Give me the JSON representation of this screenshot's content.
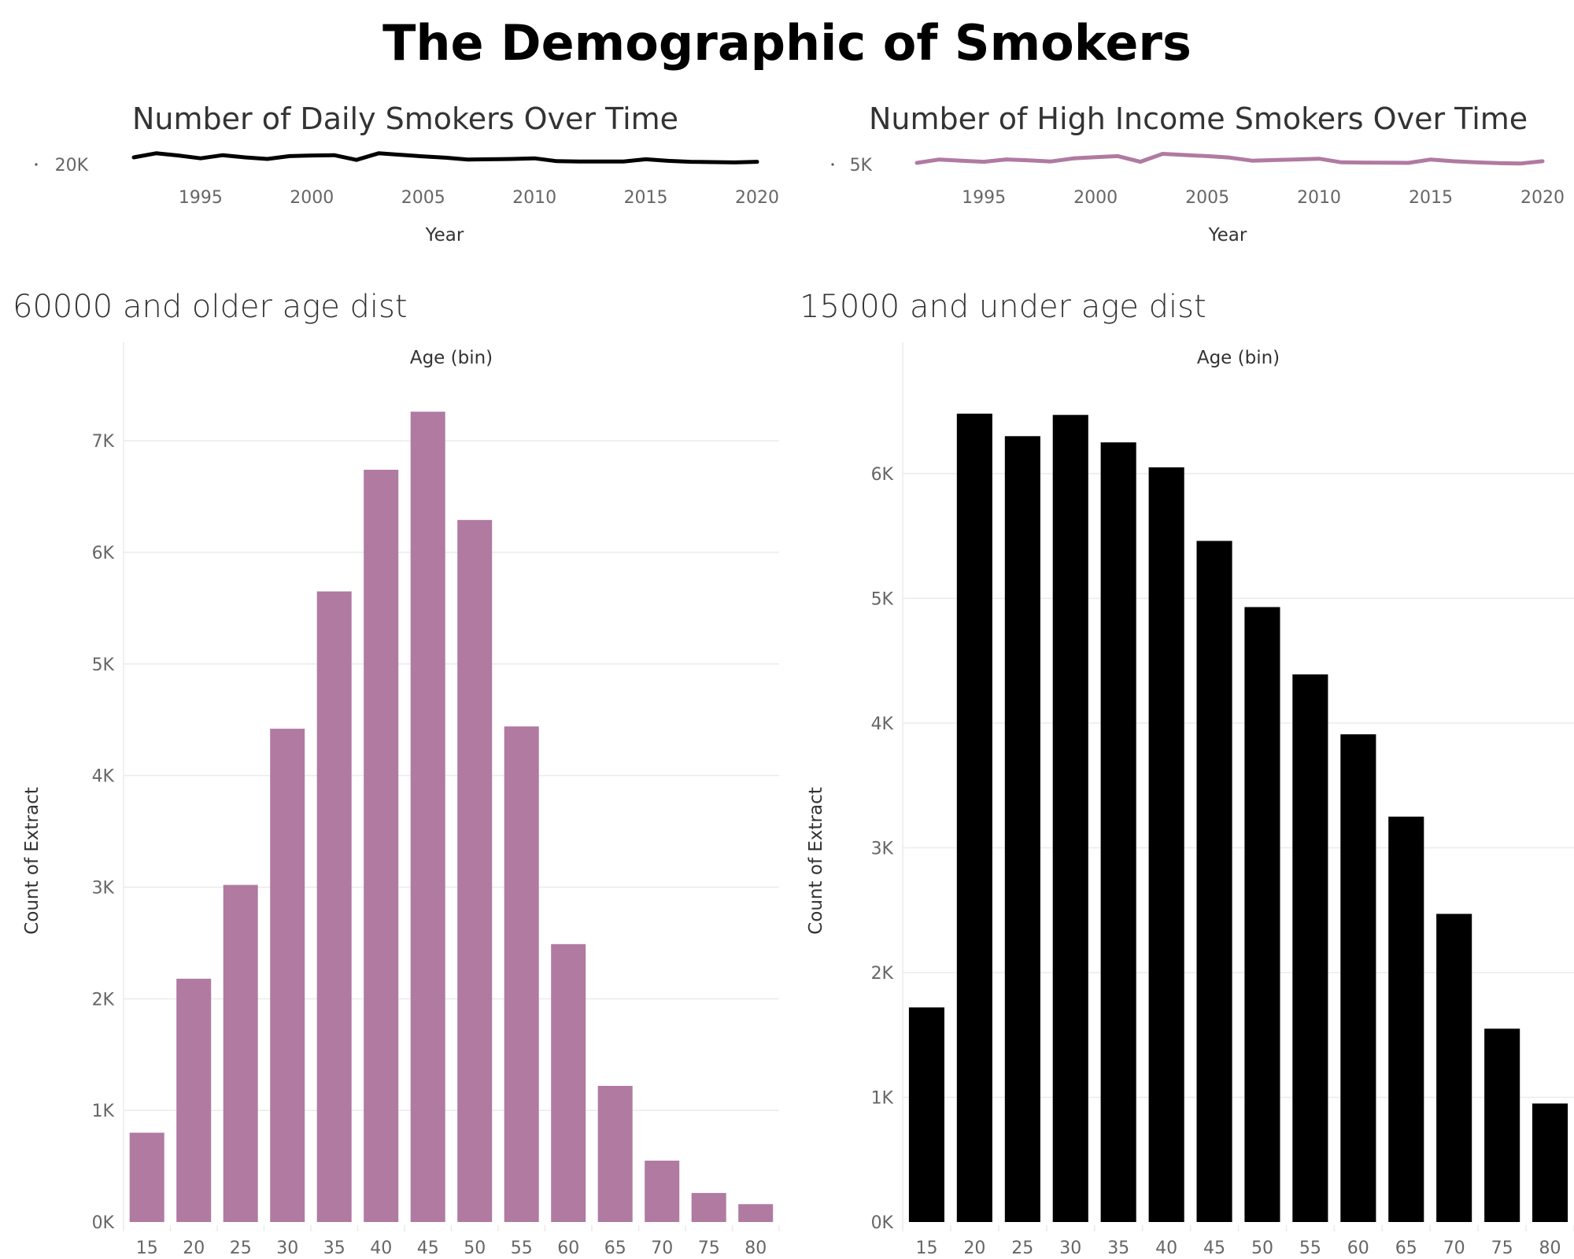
{
  "page": {
    "title": "The Demographic of Smokers"
  },
  "chart_data": [
    {
      "id": "daily",
      "type": "line",
      "title": "Number of Daily Smokers Over Time",
      "xlabel": "Year",
      "ylabel": "",
      "x_ticks": [
        1995,
        2000,
        2005,
        2010,
        2015,
        2020
      ],
      "y_tick_label": "20K",
      "xlim": [
        1992,
        2020
      ],
      "ylim": [
        15000,
        25000
      ],
      "color": "#000000",
      "x": [
        1992,
        1993,
        1994,
        1995,
        1996,
        1997,
        1998,
        1999,
        2000,
        2001,
        2002,
        2003,
        2004,
        2005,
        2006,
        2007,
        2008,
        2009,
        2010,
        2011,
        2012,
        2013,
        2014,
        2015,
        2016,
        2017,
        2018,
        2019,
        2020
      ],
      "y": [
        20000,
        21300,
        20600,
        19700,
        20700,
        20000,
        19500,
        20400,
        20600,
        20700,
        19200,
        21300,
        20800,
        20300,
        19900,
        19300,
        19400,
        19500,
        19700,
        18800,
        18700,
        18700,
        18700,
        19400,
        18900,
        18600,
        18500,
        18400,
        18600
      ]
    },
    {
      "id": "high_income",
      "type": "line",
      "title": "Number of High Income Smokers Over Time",
      "xlabel": "Year",
      "ylabel": "",
      "x_ticks": [
        1995,
        2000,
        2005,
        2010,
        2015,
        2020
      ],
      "y_tick_label": "5K",
      "xlim": [
        1992,
        2020
      ],
      "ylim": [
        3750,
        6250
      ],
      "color": "#b07aa1",
      "x": [
        1992,
        1993,
        1994,
        1995,
        1996,
        1997,
        1998,
        1999,
        2000,
        2001,
        2002,
        2003,
        2004,
        2005,
        2006,
        2007,
        2008,
        2009,
        2010,
        2011,
        2012,
        2013,
        2014,
        2015,
        2016,
        2017,
        2018,
        2019,
        2020
      ],
      "y": [
        4650,
        4950,
        4850,
        4750,
        4960,
        4880,
        4780,
        5050,
        5150,
        5250,
        4750,
        5450,
        5350,
        5250,
        5120,
        4850,
        4900,
        4960,
        5020,
        4700,
        4680,
        4670,
        4650,
        4950,
        4800,
        4700,
        4630,
        4600,
        4800
      ]
    },
    {
      "id": "older",
      "type": "bar",
      "title": "60000 and older age dist",
      "xlabel": "Age (bin)",
      "ylabel": "Count of Extract",
      "categories": [
        "15",
        "20",
        "25",
        "30",
        "35",
        "40",
        "45",
        "50",
        "55",
        "60",
        "65",
        "70",
        "75",
        "80"
      ],
      "values": [
        800,
        2180,
        3020,
        4420,
        5650,
        6740,
        7260,
        6290,
        4440,
        2490,
        1220,
        550,
        260,
        160
      ],
      "y_ticks": [
        0,
        1000,
        2000,
        3000,
        4000,
        5000,
        6000,
        7000
      ],
      "y_tick_labels": [
        "0K",
        "1K",
        "2K",
        "3K",
        "4K",
        "5K",
        "6K",
        "7K"
      ],
      "ylim": [
        0,
        7600
      ],
      "color": "#b07aa1"
    },
    {
      "id": "under",
      "type": "bar",
      "title": "15000 and under age dist",
      "xlabel": "Age (bin)",
      "ylabel": "Count of Extract",
      "categories": [
        "15",
        "20",
        "25",
        "30",
        "35",
        "40",
        "45",
        "50",
        "55",
        "60",
        "65",
        "70",
        "75",
        "80"
      ],
      "values": [
        1720,
        6480,
        6300,
        6470,
        6250,
        6050,
        5460,
        4930,
        4390,
        3910,
        3250,
        2470,
        1550,
        950
      ],
      "y_ticks": [
        0,
        1000,
        2000,
        3000,
        4000,
        5000,
        6000
      ],
      "y_tick_labels": [
        "0K",
        "1K",
        "2K",
        "3K",
        "4K",
        "5K",
        "6K"
      ],
      "ylim": [
        0,
        6800
      ],
      "color": "#000000"
    }
  ]
}
